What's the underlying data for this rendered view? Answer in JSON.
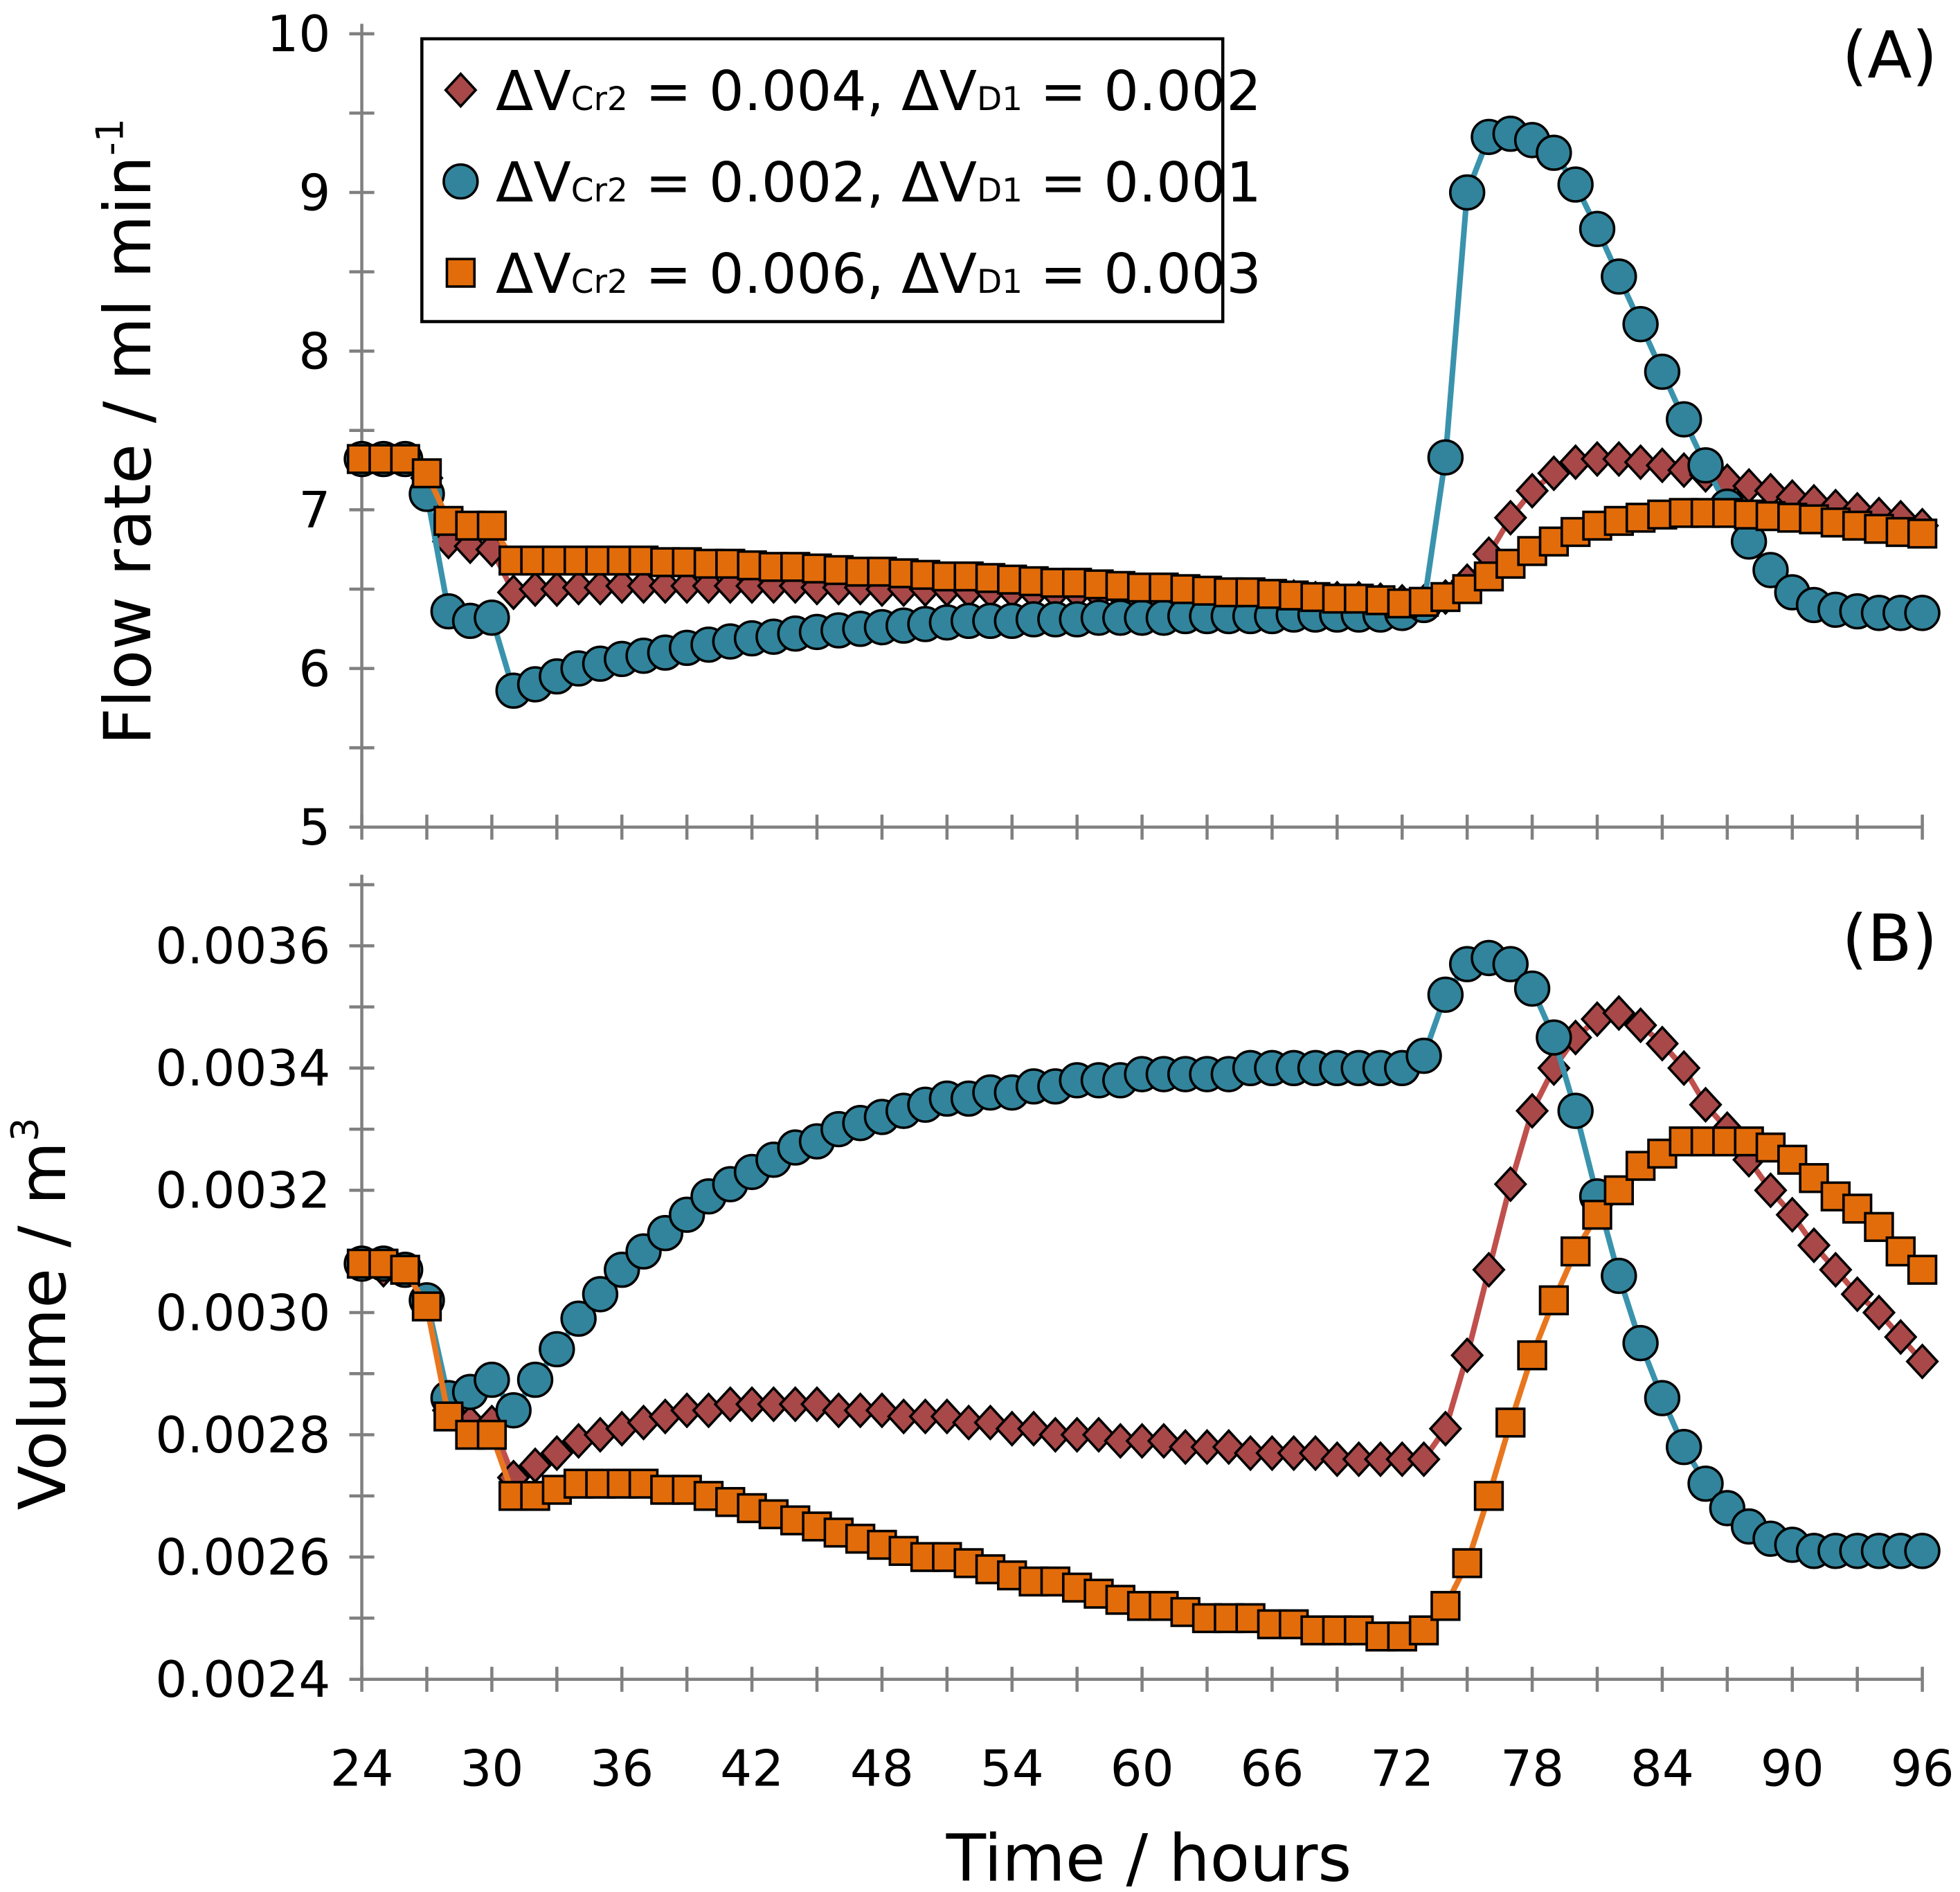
{
  "chart_data": [
    {
      "type": "line",
      "panel_label": "(A)",
      "ylabel": "Flow rate / ml min",
      "ylabel_sup": "-1",
      "xlabel": "",
      "xlim": [
        24,
        96
      ],
      "ylim": [
        5,
        10
      ],
      "yticks": [
        "5",
        "6",
        "7",
        "8",
        "9",
        "10"
      ],
      "legend_position": "top",
      "x": [
        24,
        25,
        26,
        27,
        28,
        29,
        30,
        31,
        32,
        33,
        34,
        35,
        36,
        37,
        38,
        39,
        40,
        41,
        42,
        43,
        44,
        45,
        46,
        47,
        48,
        49,
        50,
        51,
        52,
        53,
        54,
        55,
        56,
        57,
        58,
        59,
        60,
        61,
        62,
        63,
        64,
        65,
        66,
        67,
        68,
        69,
        70,
        71,
        72,
        73,
        74,
        75,
        76,
        77,
        78,
        79,
        80,
        81,
        82,
        83,
        84,
        85,
        86,
        87,
        88,
        89,
        90,
        91,
        92,
        93,
        94,
        95,
        96
      ],
      "series": [
        {
          "name": "ΔVCr2 = 0.004, ΔVD1 = 0.002",
          "marker": "diamond",
          "values": [
            7.32,
            7.32,
            7.32,
            7.2,
            6.8,
            6.77,
            6.75,
            6.48,
            6.5,
            6.5,
            6.51,
            6.51,
            6.52,
            6.52,
            6.52,
            6.52,
            6.52,
            6.52,
            6.52,
            6.52,
            6.52,
            6.51,
            6.51,
            6.51,
            6.5,
            6.5,
            6.5,
            6.5,
            6.49,
            6.49,
            6.49,
            6.48,
            6.48,
            6.48,
            6.47,
            6.47,
            6.47,
            6.47,
            6.46,
            6.46,
            6.46,
            6.45,
            6.45,
            6.45,
            6.44,
            6.44,
            6.44,
            6.43,
            6.42,
            6.42,
            6.45,
            6.55,
            6.72,
            6.95,
            7.12,
            7.23,
            7.3,
            7.32,
            7.32,
            7.3,
            7.28,
            7.25,
            7.22,
            7.18,
            7.15,
            7.12,
            7.08,
            7.05,
            7.02,
            7.0,
            6.97,
            6.95,
            6.9
          ]
        },
        {
          "name": "ΔVCr2 = 0.002, ΔVD1 = 0.001",
          "marker": "circle",
          "values": [
            7.32,
            7.32,
            7.32,
            7.1,
            6.36,
            6.3,
            6.32,
            5.86,
            5.9,
            5.95,
            6.0,
            6.03,
            6.06,
            6.08,
            6.1,
            6.13,
            6.15,
            6.17,
            6.19,
            6.2,
            6.22,
            6.23,
            6.24,
            6.25,
            6.26,
            6.27,
            6.28,
            6.29,
            6.3,
            6.3,
            6.3,
            6.31,
            6.31,
            6.31,
            6.32,
            6.32,
            6.32,
            6.32,
            6.33,
            6.33,
            6.33,
            6.33,
            6.33,
            6.34,
            6.34,
            6.34,
            6.34,
            6.34,
            6.35,
            6.4,
            7.33,
            9.0,
            9.35,
            9.37,
            9.33,
            9.25,
            9.05,
            8.77,
            8.47,
            8.17,
            7.87,
            7.57,
            7.28,
            7.02,
            6.8,
            6.62,
            6.48,
            6.4,
            6.37,
            6.36,
            6.35,
            6.35,
            6.35
          ]
        },
        {
          "name": "ΔVCr2 = 0.006, ΔVD1 = 0.003",
          "marker": "square",
          "values": [
            7.32,
            7.32,
            7.32,
            7.23,
            6.93,
            6.9,
            6.9,
            6.68,
            6.68,
            6.68,
            6.68,
            6.68,
            6.68,
            6.68,
            6.67,
            6.67,
            6.66,
            6.66,
            6.65,
            6.64,
            6.64,
            6.63,
            6.62,
            6.61,
            6.61,
            6.6,
            6.59,
            6.58,
            6.58,
            6.57,
            6.56,
            6.55,
            6.54,
            6.54,
            6.53,
            6.52,
            6.51,
            6.51,
            6.5,
            6.49,
            6.48,
            6.48,
            6.47,
            6.46,
            6.45,
            6.44,
            6.44,
            6.43,
            6.41,
            6.42,
            6.45,
            6.5,
            6.58,
            6.66,
            6.74,
            6.8,
            6.86,
            6.9,
            6.93,
            6.95,
            6.97,
            6.98,
            6.98,
            6.98,
            6.97,
            6.96,
            6.95,
            6.94,
            6.92,
            6.9,
            6.88,
            6.86,
            6.85
          ]
        }
      ]
    },
    {
      "type": "line",
      "panel_label": "(B)",
      "ylabel": "Volume / m",
      "ylabel_sup": "3",
      "xlabel": "Time / hours",
      "xlim": [
        24,
        96
      ],
      "ylim": [
        0.0024,
        0.0037
      ],
      "yticks": [
        "0.0024",
        "0.0026",
        "0.0028",
        "0.0030",
        "0.0032",
        "0.0034",
        "0.0036"
      ],
      "xticks": [
        "24",
        "30",
        "36",
        "42",
        "48",
        "54",
        "60",
        "66",
        "72",
        "78",
        "84",
        "90",
        "96"
      ],
      "x": [
        24,
        25,
        26,
        27,
        28,
        29,
        30,
        31,
        32,
        33,
        34,
        35,
        36,
        37,
        38,
        39,
        40,
        41,
        42,
        43,
        44,
        45,
        46,
        47,
        48,
        49,
        50,
        51,
        52,
        53,
        54,
        55,
        56,
        57,
        58,
        59,
        60,
        61,
        62,
        63,
        64,
        65,
        66,
        67,
        68,
        69,
        70,
        71,
        72,
        73,
        74,
        75,
        76,
        77,
        78,
        79,
        80,
        81,
        82,
        83,
        84,
        85,
        86,
        87,
        88,
        89,
        90,
        91,
        92,
        93,
        94,
        95,
        96
      ],
      "series": [
        {
          "name": "ΔVCr2 = 0.004, ΔVD1 = 0.002",
          "marker": "diamond",
          "values": [
            0.00308,
            0.00307,
            0.00307,
            0.00302,
            0.00284,
            0.00282,
            0.00282,
            0.00273,
            0.00275,
            0.00277,
            0.00279,
            0.0028,
            0.00281,
            0.00282,
            0.00283,
            0.00284,
            0.00284,
            0.00285,
            0.00285,
            0.00285,
            0.00285,
            0.00285,
            0.00284,
            0.00284,
            0.00284,
            0.00283,
            0.00283,
            0.00283,
            0.00282,
            0.00282,
            0.00281,
            0.00281,
            0.0028,
            0.0028,
            0.0028,
            0.00279,
            0.00279,
            0.00279,
            0.00278,
            0.00278,
            0.00278,
            0.00277,
            0.00277,
            0.00277,
            0.00277,
            0.00276,
            0.00276,
            0.00276,
            0.00276,
            0.00276,
            0.00281,
            0.00293,
            0.00307,
            0.00321,
            0.00333,
            0.0034,
            0.00345,
            0.00348,
            0.00349,
            0.00347,
            0.00344,
            0.0034,
            0.00334,
            0.0033,
            0.00325,
            0.0032,
            0.00316,
            0.00311,
            0.00307,
            0.00303,
            0.003,
            0.00296,
            0.00292
          ]
        },
        {
          "name": "ΔVCr2 = 0.002, ΔVD1 = 0.001",
          "marker": "circle",
          "values": [
            0.00308,
            0.00308,
            0.00307,
            0.00302,
            0.00286,
            0.00287,
            0.00289,
            0.00284,
            0.00289,
            0.00294,
            0.00299,
            0.00303,
            0.00307,
            0.0031,
            0.00313,
            0.00316,
            0.00319,
            0.00321,
            0.00323,
            0.00325,
            0.00327,
            0.00328,
            0.0033,
            0.00331,
            0.00332,
            0.00333,
            0.00334,
            0.00335,
            0.00335,
            0.00336,
            0.00336,
            0.00337,
            0.00337,
            0.00338,
            0.00338,
            0.00338,
            0.00339,
            0.00339,
            0.00339,
            0.00339,
            0.00339,
            0.0034,
            0.0034,
            0.0034,
            0.0034,
            0.0034,
            0.0034,
            0.0034,
            0.0034,
            0.00342,
            0.00352,
            0.00357,
            0.00358,
            0.00357,
            0.00353,
            0.00345,
            0.00333,
            0.00319,
            0.00306,
            0.00295,
            0.00286,
            0.00278,
            0.00272,
            0.00268,
            0.00265,
            0.00263,
            0.00262,
            0.00261,
            0.00261,
            0.00261,
            0.00261,
            0.00261,
            0.00261
          ]
        },
        {
          "name": "ΔVCr2 = 0.006, ΔVD1 = 0.003",
          "marker": "square",
          "values": [
            0.00308,
            0.00308,
            0.00307,
            0.00301,
            0.00283,
            0.0028,
            0.0028,
            0.0027,
            0.0027,
            0.00271,
            0.00272,
            0.00272,
            0.00272,
            0.00272,
            0.00271,
            0.00271,
            0.0027,
            0.00269,
            0.00268,
            0.00267,
            0.00266,
            0.00265,
            0.00264,
            0.00263,
            0.00262,
            0.00261,
            0.0026,
            0.0026,
            0.00259,
            0.00258,
            0.00257,
            0.00256,
            0.00256,
            0.00255,
            0.00254,
            0.00253,
            0.00252,
            0.00252,
            0.00251,
            0.0025,
            0.0025,
            0.0025,
            0.00249,
            0.00249,
            0.00248,
            0.00248,
            0.00248,
            0.00247,
            0.00247,
            0.00248,
            0.00252,
            0.00259,
            0.0027,
            0.00282,
            0.00293,
            0.00302,
            0.0031,
            0.00316,
            0.0032,
            0.00324,
            0.00326,
            0.00328,
            0.00328,
            0.00328,
            0.00328,
            0.00327,
            0.00325,
            0.00322,
            0.00319,
            0.00317,
            0.00314,
            0.0031,
            0.00307
          ]
        }
      ]
    }
  ],
  "legend": [
    {
      "sym": "ΔV",
      "sub1": "Cr2",
      "mid": " = 0.004, ΔV",
      "sub2": "D1",
      "end": " = 0.002"
    },
    {
      "sym": "ΔV",
      "sub1": "Cr2",
      "mid": " = 0.002, ΔV",
      "sub2": "D1",
      "end": " = 0.001"
    },
    {
      "sym": "ΔV",
      "sub1": "Cr2",
      "mid": " = 0.006, ΔV",
      "sub2": "D1",
      "end": " = 0.003"
    }
  ],
  "colors": {
    "diamond_fill": "#A84848",
    "diamond_line": "#C0504D",
    "circle_fill": "#31849B",
    "circle_line": "#3A93AD",
    "square_fill": "#E36C0A",
    "square_line": "#E8761E",
    "axis": "#808080"
  }
}
